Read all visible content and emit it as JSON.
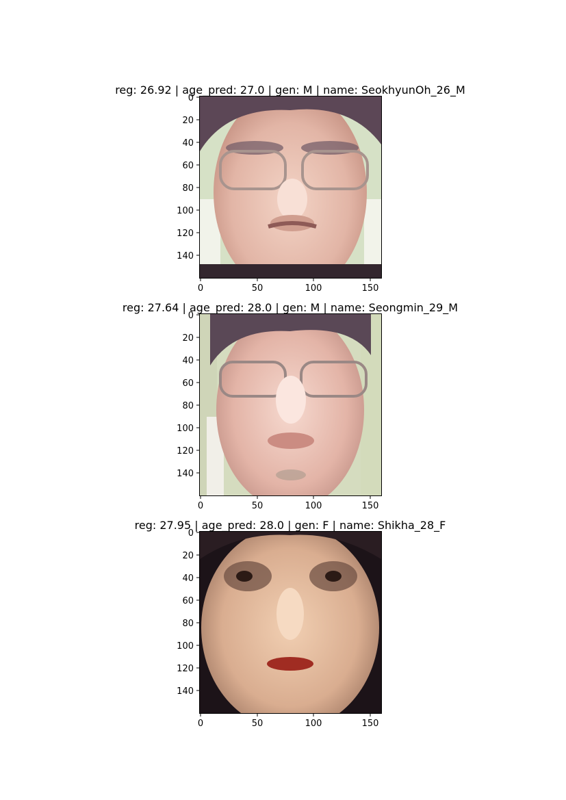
{
  "panels": [
    {
      "title": "reg: 26.92 | age_pred: 27.0 | gen: M | name: SeokhyunOh_26_M",
      "face": {
        "description_icon": "face-photo-icon"
      }
    },
    {
      "title": "reg: 27.64 | age_pred: 28.0 | gen: M | name: Seongmin_29_M",
      "face": {
        "description_icon": "face-photo-icon"
      }
    },
    {
      "title": "reg: 27.95 | age_pred: 28.0 | gen: F | name: Shikha_28_F",
      "face": {
        "description_icon": "face-photo-icon"
      }
    }
  ],
  "axes": {
    "y_ticks": [
      "0",
      "20",
      "40",
      "60",
      "80",
      "100",
      "120",
      "140"
    ],
    "x_ticks": [
      "0",
      "50",
      "100",
      "150"
    ],
    "y_tick_values": [
      0,
      20,
      40,
      60,
      80,
      100,
      120,
      140
    ],
    "x_tick_values": [
      0,
      50,
      100,
      150
    ],
    "range": [
      0,
      160
    ]
  }
}
